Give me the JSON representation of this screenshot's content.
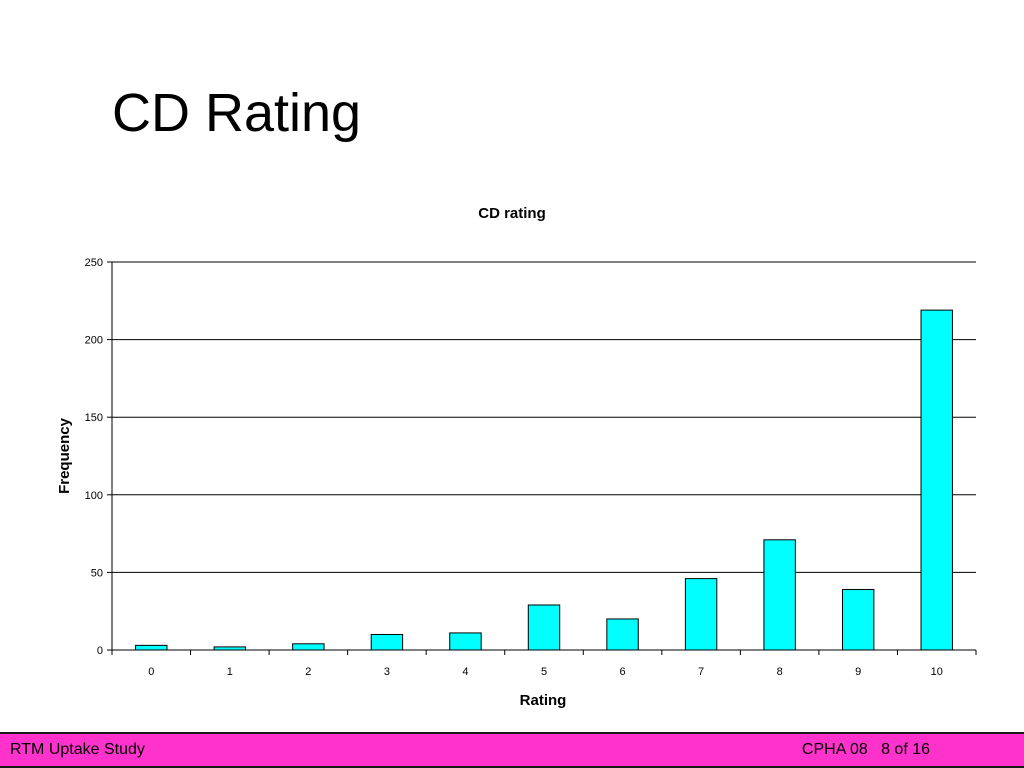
{
  "slide": {
    "title": "CD Rating"
  },
  "footer": {
    "left": "RTM Uptake Study",
    "right": "CPHA 08   8 of 16"
  },
  "chart_data": {
    "type": "bar",
    "title": "CD rating",
    "xlabel": "Rating",
    "ylabel": "Frequency",
    "categories": [
      "0",
      "1",
      "2",
      "3",
      "4",
      "5",
      "6",
      "7",
      "8",
      "9",
      "10"
    ],
    "values": [
      3,
      2,
      4,
      10,
      11,
      29,
      20,
      46,
      71,
      39,
      219
    ],
    "ylim": [
      0,
      250
    ],
    "yticks": [
      0,
      50,
      100,
      150,
      200,
      250
    ],
    "grid": true,
    "bar_color": "#00ffff"
  }
}
